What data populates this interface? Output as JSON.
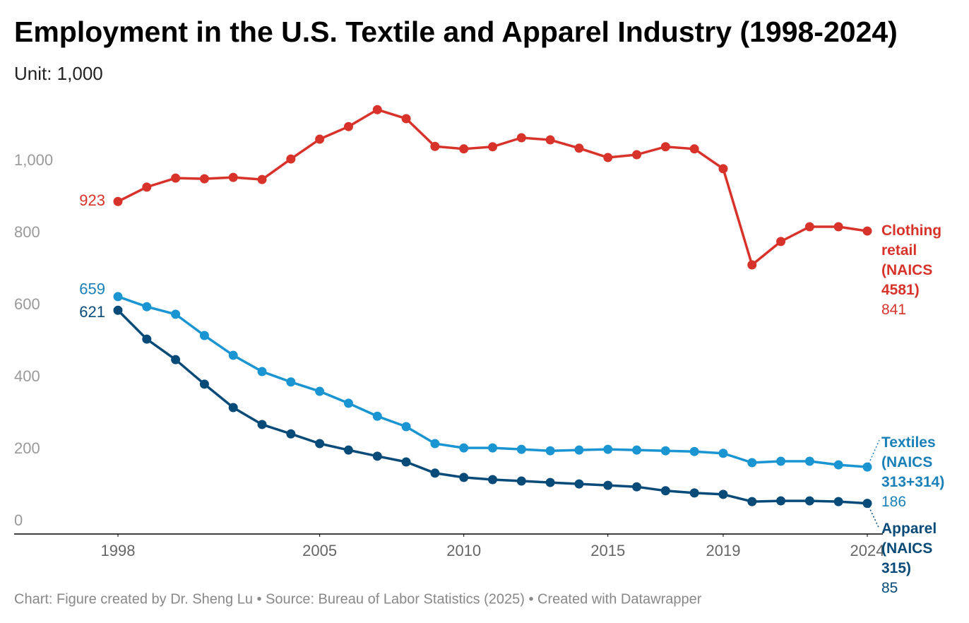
{
  "chart_data": {
    "type": "line",
    "title": "Employment in the U.S. Textile and Apparel Industry (1998-2024)",
    "subtitle": "Unit: 1,000",
    "source": "Chart: Figure created by Dr. Sheng Lu • Source: Bureau of Labor Statistics (2025) • Created with Datawrapper",
    "x": [
      1998,
      1999,
      2000,
      2001,
      2002,
      2003,
      2004,
      2005,
      2006,
      2007,
      2008,
      2009,
      2010,
      2011,
      2012,
      2013,
      2014,
      2015,
      2016,
      2017,
      2018,
      2019,
      2020,
      2021,
      2022,
      2023,
      2024
    ],
    "series": [
      {
        "name": "Clothing retail (NAICS 4581)",
        "color": "#d7332a",
        "values": [
          923,
          963,
          988,
          986,
          990,
          984,
          1041,
          1096,
          1131,
          1178,
          1153,
          1076,
          1069,
          1075,
          1100,
          1094,
          1071,
          1045,
          1053,
          1075,
          1069,
          1014,
          747,
          812,
          853,
          853,
          841
        ]
      },
      {
        "name": "Textiles (NAICS 313+314)",
        "color": "#1b95d2",
        "values": [
          659,
          631,
          610,
          551,
          496,
          451,
          422,
          396,
          363,
          327,
          298,
          251,
          239,
          239,
          235,
          231,
          233,
          235,
          233,
          231,
          229,
          224,
          198,
          202,
          202,
          192,
          186
        ]
      },
      {
        "name": "Apparel (NAICS 315)",
        "color": "#084a78",
        "values": [
          621,
          541,
          484,
          416,
          351,
          304,
          278,
          251,
          233,
          216,
          200,
          169,
          157,
          151,
          147,
          143,
          139,
          135,
          131,
          120,
          114,
          110,
          90,
          92,
          92,
          90,
          85
        ]
      }
    ],
    "xlim": [
      1998,
      2024
    ],
    "xticks": [
      1998,
      2005,
      2010,
      2015,
      2019,
      2024
    ],
    "ylim": [
      0,
      1200
    ],
    "yticks": [
      0,
      200,
      400,
      600,
      800,
      {
        "value": 1000,
        "label": "1,000"
      }
    ],
    "grid": false
  }
}
